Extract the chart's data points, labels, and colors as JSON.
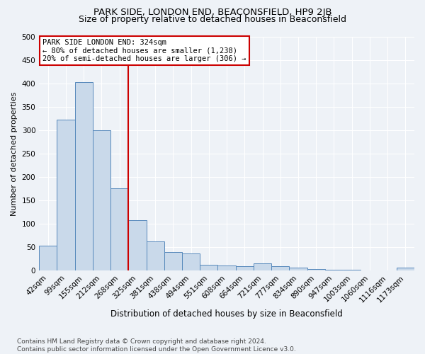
{
  "title": "PARK SIDE, LONDON END, BEACONSFIELD, HP9 2JB",
  "subtitle": "Size of property relative to detached houses in Beaconsfield",
  "xlabel": "Distribution of detached houses by size in Beaconsfield",
  "ylabel": "Number of detached properties",
  "categories": [
    "42sqm",
    "99sqm",
    "155sqm",
    "212sqm",
    "268sqm",
    "325sqm",
    "381sqm",
    "438sqm",
    "494sqm",
    "551sqm",
    "608sqm",
    "664sqm",
    "721sqm",
    "777sqm",
    "834sqm",
    "890sqm",
    "947sqm",
    "1003sqm",
    "1060sqm",
    "1116sqm",
    "1173sqm"
  ],
  "values": [
    54,
    322,
    403,
    300,
    175,
    108,
    63,
    40,
    36,
    13,
    11,
    10,
    15,
    9,
    7,
    4,
    2,
    2,
    1,
    1,
    6
  ],
  "bar_color": "#c9d9ea",
  "bar_edge_color": "#5588bb",
  "highlight_line_index": 5,
  "highlight_color": "#cc0000",
  "annotation_text": "PARK SIDE LONDON END: 324sqm\n← 80% of detached houses are smaller (1,238)\n20% of semi-detached houses are larger (306) →",
  "annotation_box_facecolor": "#ffffff",
  "annotation_box_edgecolor": "#cc0000",
  "ylim": [
    0,
    500
  ],
  "yticks": [
    0,
    50,
    100,
    150,
    200,
    250,
    300,
    350,
    400,
    450,
    500
  ],
  "fig_bg": "#eef2f7",
  "ax_bg": "#eef2f7",
  "grid_color": "#ffffff",
  "footer_line1": "Contains HM Land Registry data © Crown copyright and database right 2024.",
  "footer_line2": "Contains public sector information licensed under the Open Government Licence v3.0.",
  "title_fontsize": 9.5,
  "subtitle_fontsize": 9,
  "ylabel_fontsize": 8,
  "xlabel_fontsize": 8.5,
  "tick_fontsize": 7.5,
  "annotation_fontsize": 7.5,
  "footer_fontsize": 6.5
}
